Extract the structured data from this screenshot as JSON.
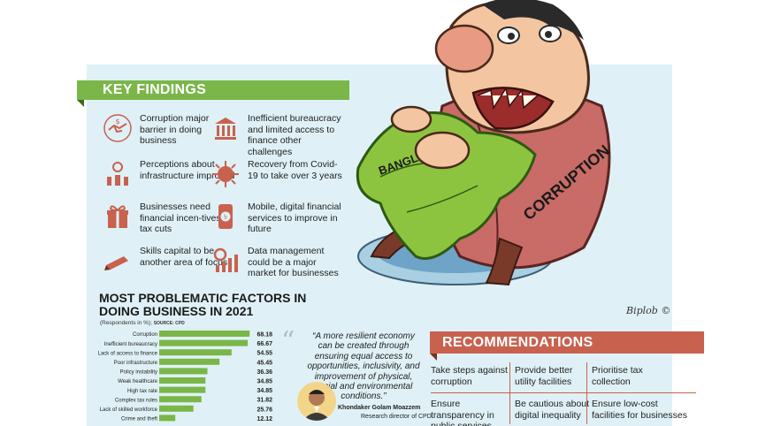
{
  "key_findings": {
    "title": "KEY FINDINGS",
    "items": [
      {
        "text": "Corruption major barrier in doing business",
        "icon": "handshake-money-icon"
      },
      {
        "text": "Inefficient bureaucracy and limited access to finance other challenges",
        "icon": "government-building-icon"
      },
      {
        "text": "Perceptions about infrastructure improved",
        "icon": "infrastructure-icon"
      },
      {
        "text": "Recovery from Covid-19 to take over 3 years",
        "icon": "virus-icon"
      },
      {
        "text": "Businesses need financial incen-tives, tax cuts",
        "icon": "gift-box-icon"
      },
      {
        "text": "Mobile, digital financial services to improve in future",
        "icon": "mobile-taka-icon"
      },
      {
        "text": "Skills capital to be another area of focus",
        "icon": "pencil-icon"
      },
      {
        "text": "Data management could be a major market for businesses",
        "icon": "data-chart-icon"
      }
    ],
    "icon_color": "#c9614f"
  },
  "cartoon": {
    "labels": [
      "BANGLADESH",
      "CORRUPTION"
    ],
    "signature": "Biplob ©"
  },
  "chart_data": {
    "type": "bar",
    "orientation": "horizontal",
    "title": "MOST PROBLEMATIC FACTORS IN DOING BUSINESS IN 2021",
    "subtitle": "(Respondents in %);",
    "source": "SOURCE: CPD",
    "categories": [
      "Corruption",
      "Inefficient bureaucracy",
      "Lack of access to finance",
      "Poor infrastructure",
      "Policy instability",
      "Weak healthcare",
      "High tax rate",
      "Complex tax rules",
      "Lack of skilled workforce",
      "Crime and theft"
    ],
    "values": [
      68.18,
      66.67,
      54.55,
      45.45,
      36.36,
      34.85,
      34.85,
      31.82,
      25.76,
      12.12
    ],
    "value_labels": [
      "68.18",
      "66.67",
      "54.55",
      "45.45",
      "36.36",
      "34.85",
      "34.85",
      "31.82",
      "25.76",
      "12.12"
    ],
    "xlim": [
      0,
      70
    ],
    "bar_color": "#7ab648",
    "grid": false
  },
  "quote": {
    "text": "A more resilient economy can be created through ensuring equal access to opportunities, inclusivity, and improvement of physical, social and environmental conditions.",
    "name": "Khondaker Golam Moazzem",
    "role": "Research director of CPD"
  },
  "recommendations": {
    "title": "RECOMMENDATIONS",
    "items": [
      "Take steps against corruption",
      "Provide better utility facilities",
      "Prioritise tax collection",
      "Ensure transparency in public services",
      "Be cautious about digital inequality",
      "Ensure low-cost facilities for businesses"
    ],
    "accent_color": "#c9614f"
  }
}
